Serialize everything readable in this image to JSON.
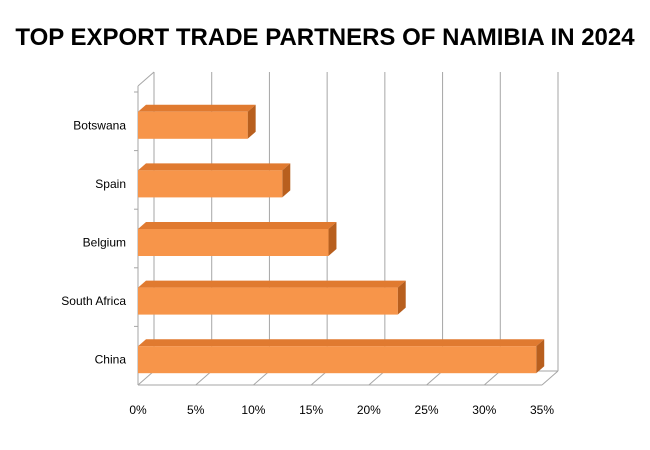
{
  "chart_data": {
    "type": "bar",
    "orientation": "horizontal",
    "title": "TOP EXPORT TRADE PARTNERS OF NAMIBIA IN 2024",
    "categories": [
      "Botswana",
      "Spain",
      "Belgium",
      "South Africa",
      "China"
    ],
    "values": [
      0.095,
      0.125,
      0.165,
      0.225,
      0.345
    ],
    "xlim": [
      0,
      0.35
    ],
    "x_ticks": [
      "0%",
      "5%",
      "10%",
      "15%",
      "20%",
      "25%",
      "30%",
      "35%"
    ],
    "x_tick_values": [
      0,
      0.05,
      0.1,
      0.15,
      0.2,
      0.25,
      0.3,
      0.35
    ],
    "grid": "vertical",
    "style": "3d",
    "colors": {
      "bar_front": "#F7954A",
      "bar_top": "#E07A30",
      "bar_side": "#B85F1E",
      "grid": "#A6A6A6",
      "text": "#000000"
    }
  }
}
